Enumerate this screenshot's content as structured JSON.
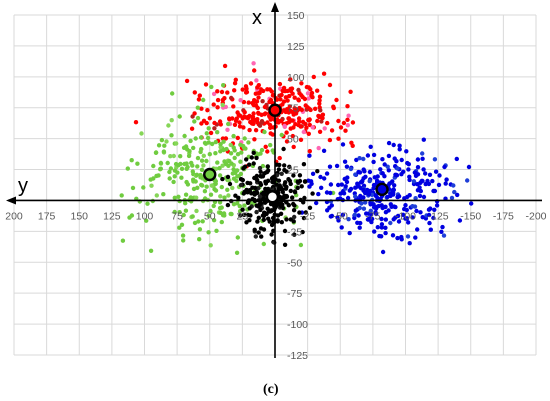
{
  "chart_data": {
    "type": "scatter",
    "title": "",
    "caption": "(c)",
    "x_axis_letter": "y",
    "y_axis_letter": "x",
    "x_reversed": true,
    "xlim": [
      -200,
      200
    ],
    "ylim": [
      -125,
      150
    ],
    "x_ticks": [
      200,
      175,
      150,
      125,
      100,
      75,
      50,
      25,
      -25,
      -50,
      -75,
      -100,
      -125,
      -150,
      -175,
      -200
    ],
    "y_ticks": [
      150,
      125,
      100,
      75,
      50,
      25,
      -25,
      -50,
      -75,
      -100,
      -125
    ],
    "grid": true,
    "series": [
      {
        "color": "#ff0000",
        "center": [
          2,
          72
        ],
        "spread": [
          28,
          14
        ],
        "count": 320,
        "seed": 11,
        "edge_colors": [
          "#b51f1f",
          "#ff66b3"
        ]
      },
      {
        "color": "#70cc40",
        "center": [
          50,
          18
        ],
        "spread": [
          26,
          24
        ],
        "count": 300,
        "seed": 23,
        "edge_colors": [
          "#86d657"
        ]
      },
      {
        "color": "#0000e0",
        "center": [
          -83,
          6
        ],
        "spread": [
          27,
          17
        ],
        "count": 330,
        "seed": 37,
        "edge_colors": [
          "#1f3fd8"
        ]
      },
      {
        "color": "#000000",
        "center": [
          2,
          4
        ],
        "spread": [
          14,
          15
        ],
        "count": 260,
        "seed": 53,
        "edge_colors": [
          "#202020"
        ]
      }
    ],
    "centroids": [
      {
        "x": 0,
        "y": 73,
        "fill": "#ff0000"
      },
      {
        "x": 50,
        "y": 21,
        "fill": "#70cc40"
      },
      {
        "x": -82,
        "y": 9,
        "fill": "#0000e0"
      },
      {
        "x": 2,
        "y": 3,
        "fill": "#ffffff"
      }
    ]
  }
}
